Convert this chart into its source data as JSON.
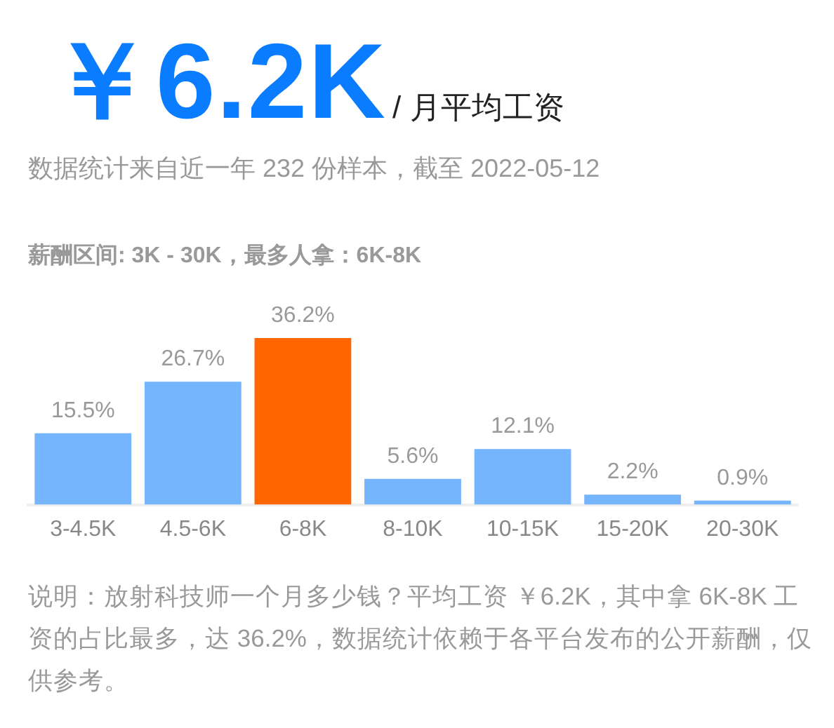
{
  "chart_data": {
    "type": "bar",
    "title": "￥6.2K",
    "subtitle": "/ 月平均工资",
    "categories": [
      "3-4.5K",
      "4.5-6K",
      "6-8K",
      "8-10K",
      "10-15K",
      "15-20K",
      "20-30K"
    ],
    "values": [
      15.5,
      26.7,
      36.2,
      5.6,
      12.1,
      2.2,
      0.9
    ],
    "colors": [
      "#75b5fd",
      "#75b5fd",
      "#ff6600",
      "#75b5fd",
      "#75b5fd",
      "#75b5fd",
      "#75b5fd"
    ],
    "value_labels": [
      "15.5%",
      "26.7%",
      "36.2%",
      "5.6%",
      "12.1%",
      "2.2%",
      "0.9%"
    ],
    "annotations": [
      "数据统计来自近一年 232 份样本，截至 2022-05-12",
      "薪酬区间: 3K - 30K，最多人拿：6K-8K",
      "说明：放射科技师一个月多少钱？平均工资 ￥6.2K，其中拿 6K-8K 工资的占比最多，达 36.2%，数据统计依赖于各平台发布的公开薪酬，仅供参考。"
    ],
    "grid": false,
    "legend": false,
    "tick_labels": "x"
  }
}
